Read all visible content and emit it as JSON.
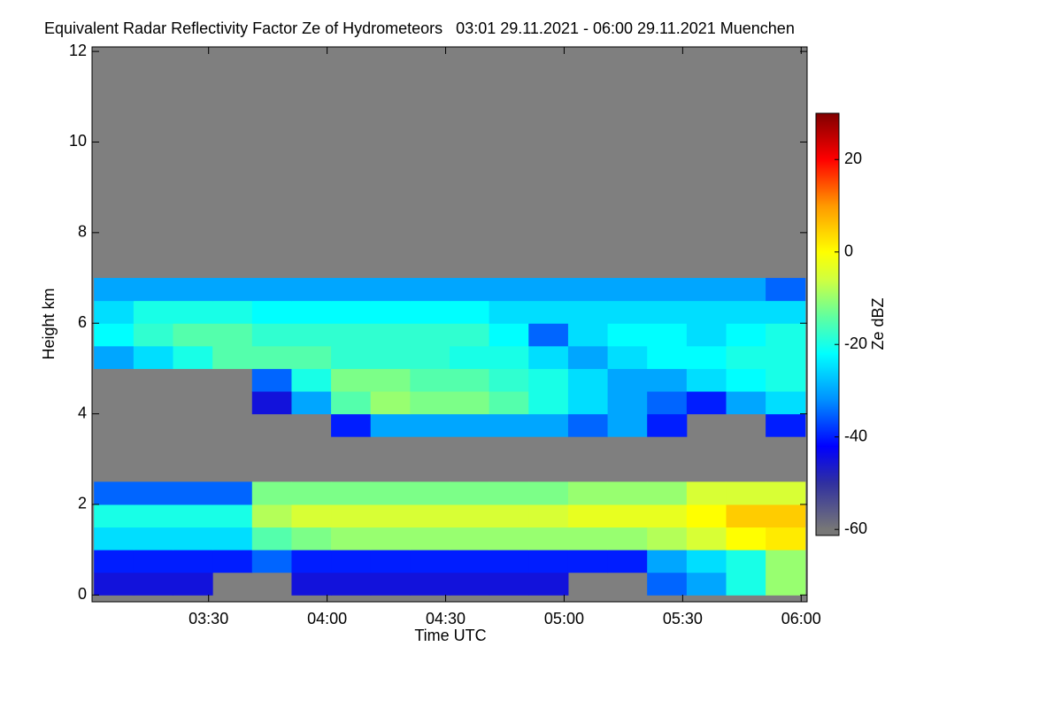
{
  "chart_data": {
    "type": "heatmap",
    "title": "Equivalent Radar Reflectivity Factor Ze of Hydrometeors   03:01 29.11.2021 - 06:00 29.11.2021 Muenchen",
    "x_label": "Time UTC",
    "y_label": "Height km",
    "colorbar_label": "Ze dBZ",
    "background_color": "#7f7f7f",
    "xlim": [
      180.5,
      361.5
    ],
    "xticks": [
      {
        "value": 210,
        "label": "03:30"
      },
      {
        "value": 240,
        "label": "04:00"
      },
      {
        "value": 270,
        "label": "04:30"
      },
      {
        "value": 300,
        "label": "05:00"
      },
      {
        "value": 330,
        "label": "05:30"
      },
      {
        "value": 360,
        "label": "06:00"
      }
    ],
    "ylim": [
      -0.15,
      12.1
    ],
    "yticks": [
      0,
      2,
      4,
      6,
      8,
      10,
      12
    ],
    "clim": [
      -61.3,
      30
    ],
    "cticks": [
      -60,
      -40,
      -20,
      0,
      20
    ],
    "colorscale": [
      [
        -60,
        "#777777"
      ],
      [
        -50,
        "#3030a0"
      ],
      [
        -42,
        "#0000ff"
      ],
      [
        -32,
        "#0090ff"
      ],
      [
        -22,
        "#00ffff"
      ],
      [
        -14,
        "#60ffa0"
      ],
      [
        -6,
        "#d0ff40"
      ],
      [
        0,
        "#ffff00"
      ],
      [
        10,
        "#ff9900"
      ],
      [
        20,
        "#ff0000"
      ],
      [
        30,
        "#800000"
      ]
    ],
    "x_bins": [
      181,
      191,
      201,
      211,
      221,
      231,
      241,
      251,
      261,
      271,
      281,
      291,
      301,
      311,
      321,
      331,
      341,
      351,
      361
    ],
    "y_bins": [
      0,
      0.5,
      1,
      1.5,
      2,
      2.5,
      3,
      3.5,
      4,
      4.5,
      5,
      5.5,
      6,
      6.5,
      7,
      7.5,
      8,
      8.5,
      9,
      9.5,
      10,
      10.5,
      11,
      11.5,
      12
    ],
    "z": [
      [
        -45,
        -45,
        -45,
        null,
        null,
        -45,
        -45,
        -45,
        -45,
        -45,
        -45,
        -45,
        null,
        null,
        -35,
        -30,
        -20,
        -10
      ],
      [
        -40,
        -40,
        -40,
        -40,
        -35,
        -40,
        -40,
        -40,
        -40,
        -40,
        -40,
        -40,
        -40,
        -40,
        -30,
        -25,
        -20,
        -10
      ],
      [
        -25,
        -25,
        -25,
        -25,
        -15,
        -12,
        -10,
        -10,
        -10,
        -10,
        -10,
        -10,
        -10,
        -10,
        -8,
        -5,
        0,
        2
      ],
      [
        -20,
        -20,
        -20,
        -20,
        -8,
        -5,
        -5,
        -5,
        -5,
        -5,
        -5,
        -5,
        -3,
        -3,
        -3,
        0,
        5,
        5
      ],
      [
        -35,
        -35,
        -35,
        -35,
        -12,
        -12,
        -12,
        -12,
        -12,
        -12,
        -12,
        -12,
        -10,
        -10,
        -10,
        -5,
        -5,
        -5
      ],
      [
        null,
        null,
        null,
        null,
        null,
        null,
        null,
        null,
        null,
        null,
        null,
        null,
        null,
        null,
        null,
        null,
        null,
        null
      ],
      [
        null,
        null,
        null,
        null,
        null,
        null,
        null,
        null,
        null,
        null,
        null,
        null,
        null,
        null,
        null,
        null,
        null,
        null
      ],
      [
        null,
        null,
        null,
        null,
        null,
        null,
        -40,
        -30,
        -30,
        -30,
        -30,
        -30,
        -35,
        -30,
        -40,
        null,
        null,
        -40
      ],
      [
        null,
        null,
        null,
        null,
        -45,
        -30,
        -15,
        -10,
        -12,
        -12,
        -15,
        -20,
        -25,
        -30,
        -35,
        -40,
        -30,
        -25
      ],
      [
        null,
        null,
        null,
        null,
        -35,
        -20,
        -12,
        -12,
        -15,
        -15,
        -18,
        -20,
        -25,
        -30,
        -30,
        -25,
        -22,
        -20
      ],
      [
        -30,
        -25,
        -20,
        -15,
        -15,
        -15,
        -18,
        -18,
        -18,
        -20,
        -20,
        -25,
        -30,
        -25,
        -22,
        -22,
        -20,
        -20
      ],
      [
        -22,
        -18,
        -15,
        -15,
        -18,
        -18,
        -18,
        -18,
        -18,
        -18,
        -22,
        -35,
        -25,
        -22,
        -22,
        -25,
        -22,
        -20
      ],
      [
        -25,
        -20,
        -20,
        -20,
        -22,
        -22,
        -22,
        -22,
        -22,
        -22,
        -25,
        -25,
        -25,
        -25,
        -25,
        -25,
        -25,
        -25
      ],
      [
        -30,
        -30,
        -30,
        -30,
        -30,
        -30,
        -30,
        -30,
        -30,
        -30,
        -30,
        -30,
        -30,
        -30,
        -30,
        -30,
        -30,
        -35
      ],
      [
        null,
        null,
        null,
        null,
        null,
        null,
        null,
        null,
        null,
        null,
        null,
        null,
        null,
        null,
        null,
        null,
        null,
        null
      ],
      [
        null,
        null,
        null,
        null,
        null,
        null,
        null,
        null,
        null,
        null,
        null,
        null,
        null,
        null,
        null,
        null,
        null,
        null
      ],
      [
        null,
        null,
        null,
        null,
        null,
        null,
        null,
        null,
        null,
        null,
        null,
        null,
        null,
        null,
        null,
        null,
        null,
        null
      ],
      [
        null,
        null,
        null,
        null,
        null,
        null,
        null,
        null,
        null,
        null,
        null,
        null,
        null,
        null,
        null,
        null,
        null,
        null
      ],
      [
        null,
        null,
        null,
        null,
        null,
        null,
        null,
        null,
        null,
        null,
        null,
        null,
        null,
        null,
        null,
        null,
        null,
        null
      ],
      [
        null,
        null,
        null,
        null,
        null,
        null,
        null,
        null,
        null,
        null,
        null,
        null,
        null,
        null,
        null,
        null,
        null,
        null
      ],
      [
        null,
        null,
        null,
        null,
        null,
        null,
        null,
        null,
        null,
        null,
        null,
        null,
        null,
        null,
        null,
        null,
        null,
        null
      ],
      [
        null,
        null,
        null,
        null,
        null,
        null,
        null,
        null,
        null,
        null,
        null,
        null,
        null,
        null,
        null,
        null,
        null,
        null
      ],
      [
        null,
        null,
        null,
        null,
        null,
        null,
        null,
        null,
        null,
        null,
        null,
        null,
        null,
        null,
        null,
        null,
        null,
        null
      ],
      [
        null,
        null,
        null,
        null,
        null,
        null,
        null,
        null,
        null,
        null,
        null,
        null,
        null,
        null,
        null,
        null,
        null,
        null
      ]
    ]
  }
}
